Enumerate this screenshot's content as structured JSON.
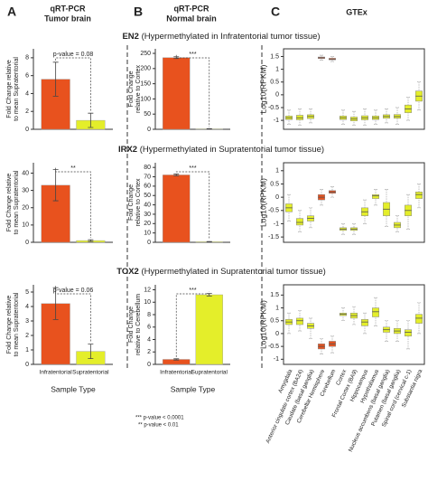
{
  "panels": [
    {
      "letter": "A",
      "title": [
        "qRT-PCR",
        "Tumor brain"
      ]
    },
    {
      "letter": "B",
      "title": [
        "qRT-PCR",
        "Normal brain"
      ]
    },
    {
      "letter": "C",
      "title": [
        "GTEx"
      ]
    }
  ],
  "rows": [
    {
      "gene": "EN2",
      "note": "(Hypermethylated in Infratentorial tumor tissue)"
    },
    {
      "gene": "IRX2",
      "note": "(Hypermethylated in Supratentorial tumor tissue)"
    },
    {
      "gene": "TOX2",
      "note": "(Hypermethylated in Supratentorial tumor tissue)"
    }
  ],
  "footnotes": [
    "*** p-value < 0.0001",
    "** p-value < 0.01"
  ],
  "chart_data": [
    {
      "type": "bar",
      "ylabel": [
        "Fold Change relative",
        "to mean Supratentorial"
      ],
      "values": [
        5.6,
        1
      ],
      "errors": [
        1.9,
        0.8
      ],
      "colors": [
        "#e8521e",
        "#e4ee2a"
      ],
      "ylim": [
        0,
        9
      ],
      "yticks": [
        0,
        2,
        4,
        6,
        8
      ],
      "annotation": "p-value = 0.08"
    },
    {
      "type": "bar",
      "ylabel": [
        "Fold Change",
        "relative to Cortex"
      ],
      "values": [
        236,
        1.5
      ],
      "errors": [
        3,
        0.5
      ],
      "colors": [
        "#e8521e",
        "#e4ee2a"
      ],
      "ylim": [
        0,
        265
      ],
      "yticks": [
        0,
        50,
        100,
        150,
        200,
        250
      ],
      "annotation": "***"
    },
    {
      "type": "box",
      "ylabel": "Log10(RPKM)",
      "ylim": [
        -1.35,
        1.8
      ],
      "yticks": [
        -1,
        -0.5,
        0,
        0.5,
        1,
        1.5
      ],
      "colors": [
        "#e4ee2a",
        "#e4ee2a",
        "#e4ee2a",
        "#e8521e",
        "#e8521e",
        "#e4ee2a",
        "#e4ee2a",
        "#e4ee2a",
        "#e4ee2a",
        "#e4ee2a",
        "#e4ee2a",
        "#e4ee2a",
        "#e4ee2a"
      ],
      "median": [
        -0.9,
        -0.9,
        -0.85,
        1.45,
        1.4,
        -0.9,
        -0.95,
        -0.9,
        -0.9,
        -0.85,
        -0.85,
        -0.55,
        -0.05
      ],
      "q1": [
        -0.97,
        -0.98,
        -0.93,
        1.42,
        1.37,
        -0.97,
        -1.02,
        -0.98,
        -0.97,
        -0.92,
        -0.92,
        -0.7,
        -0.25
      ],
      "q3": [
        -0.83,
        -0.8,
        -0.78,
        1.48,
        1.43,
        -0.83,
        -0.87,
        -0.82,
        -0.83,
        -0.78,
        -0.77,
        -0.4,
        0.15
      ],
      "min": [
        -1.15,
        -1.2,
        -1.1,
        1.35,
        1.3,
        -1.15,
        -1.2,
        -1.2,
        -1.15,
        -1.1,
        -1.15,
        -1.0,
        -0.6
      ],
      "max": [
        -0.6,
        -0.55,
        -0.55,
        1.55,
        1.5,
        -0.6,
        -0.65,
        -0.55,
        -0.6,
        -0.55,
        -0.5,
        -0.1,
        0.5
      ]
    },
    {
      "type": "bar",
      "ylabel": [
        "Fold Change relative",
        "to mean Supratentorial"
      ],
      "values": [
        33,
        1
      ],
      "errors": [
        9,
        0.5
      ],
      "colors": [
        "#e8521e",
        "#e4ee2a"
      ],
      "ylim": [
        0,
        46
      ],
      "yticks": [
        0,
        10,
        20,
        30,
        40
      ],
      "annotation": "**"
    },
    {
      "type": "bar",
      "ylabel": [
        "Fold Change",
        "relative to Cortex"
      ],
      "values": [
        72,
        0.6
      ],
      "errors": [
        1,
        0.2
      ],
      "colors": [
        "#e8521e",
        "#e4ee2a"
      ],
      "ylim": [
        0,
        85
      ],
      "yticks": [
        0,
        10,
        20,
        30,
        40,
        50,
        60,
        70,
        80
      ],
      "annotation": "***"
    },
    {
      "type": "box",
      "ylabel": "Log10(RPKM)",
      "ylim": [
        -1.7,
        1.3
      ],
      "yticks": [
        -1.5,
        -1,
        -0.5,
        0,
        0.5,
        1
      ],
      "colors": [
        "#e4ee2a",
        "#e4ee2a",
        "#e4ee2a",
        "#e8521e",
        "#e8521e",
        "#e4ee2a",
        "#e4ee2a",
        "#e4ee2a",
        "#e4ee2a",
        "#e4ee2a",
        "#e4ee2a",
        "#e4ee2a",
        "#e4ee2a"
      ],
      "median": [
        -0.4,
        -0.95,
        -0.8,
        0,
        0.2,
        -1.2,
        -1.2,
        -0.55,
        0.05,
        -0.45,
        -1.05,
        -0.5,
        0.1
      ],
      "q1": [
        -0.55,
        -1.05,
        -0.9,
        -0.1,
        0.15,
        -1.25,
        -1.25,
        -0.7,
        -0.05,
        -0.7,
        -1.15,
        -0.7,
        -0.05
      ],
      "q3": [
        -0.25,
        -0.8,
        -0.7,
        0.1,
        0.25,
        -1.15,
        -1.15,
        -0.4,
        0.1,
        -0.2,
        -0.95,
        -0.3,
        0.2
      ],
      "min": [
        -0.9,
        -1.3,
        -1.15,
        -0.3,
        0,
        -1.4,
        -1.4,
        -1.0,
        -0.3,
        -1.1,
        -1.3,
        -1.2,
        -0.4
      ],
      "max": [
        0.1,
        -0.5,
        -0.4,
        0.3,
        0.4,
        -1.0,
        -1.0,
        -0.1,
        0.3,
        0.3,
        -0.7,
        0.1,
        0.5
      ]
    },
    {
      "type": "bar",
      "ylabel": [
        "Fold Change relative",
        "to mean Supratentorial"
      ],
      "categories": [
        "Infratentorial",
        "Supratentorial"
      ],
      "xlabel": "Sample Type",
      "values": [
        4.2,
        0.9
      ],
      "errors": [
        1.1,
        0.5
      ],
      "colors": [
        "#e8521e",
        "#e4ee2a"
      ],
      "ylim": [
        0,
        5.5
      ],
      "yticks": [
        0,
        1,
        2,
        3,
        4,
        5
      ],
      "annotation": "p-value = 0.06"
    },
    {
      "type": "bar",
      "ylabel": [
        "Fold Change",
        "relative to Cerebellum"
      ],
      "categories": [
        "Infratentorial",
        "Supratentorial"
      ],
      "xlabel": "Sample Type",
      "values": [
        0.8,
        11.2
      ],
      "errors": [
        0.1,
        0.2
      ],
      "colors": [
        "#e8521e",
        "#e4ee2a"
      ],
      "ylim": [
        0,
        12.8
      ],
      "yticks": [
        0,
        2,
        4,
        6,
        8,
        10,
        12
      ],
      "annotation": "***"
    },
    {
      "type": "box",
      "ylabel": "Log10(RPKM)",
      "ylim": [
        -1.2,
        1.9
      ],
      "yticks": [
        -1,
        -0.5,
        0,
        0.5,
        1,
        1.5
      ],
      "categories": [
        "Amygdala",
        "Anterior cingulate cortex (BA24)",
        "Caudate (basal ganglia)",
        "Cerebellar Hemisphere",
        "Cerebellum",
        "Cortex",
        "Frontal Cortex (BA9)",
        "Hippocampus",
        "Hypothalamus",
        "Nucleus accumbens (basal ganglia)",
        "Putamen (basal ganglia)",
        "Spinal cord (cervical c-1)",
        "Substantia nigra"
      ],
      "colors": [
        "#e4ee2a",
        "#e4ee2a",
        "#e4ee2a",
        "#e8521e",
        "#e8521e",
        "#e4ee2a",
        "#e4ee2a",
        "#e4ee2a",
        "#e4ee2a",
        "#e4ee2a",
        "#e4ee2a",
        "#e4ee2a",
        "#e4ee2a"
      ],
      "median": [
        0.45,
        0.5,
        0.3,
        -0.5,
        -0.4,
        0.75,
        0.7,
        0.45,
        0.85,
        0.15,
        0.1,
        0.05,
        0.6
      ],
      "q1": [
        0.35,
        0.35,
        0.2,
        -0.6,
        -0.5,
        0.7,
        0.6,
        0.3,
        0.65,
        0.05,
        0,
        -0.1,
        0.4
      ],
      "q3": [
        0.55,
        0.6,
        0.4,
        -0.4,
        -0.3,
        0.8,
        0.8,
        0.55,
        1.0,
        0.25,
        0.2,
        0.15,
        0.75
      ],
      "min": [
        0,
        0.1,
        -0.2,
        -0.8,
        -0.75,
        0.5,
        0.35,
        0,
        0.3,
        -0.3,
        -0.3,
        -0.6,
        0
      ],
      "max": [
        0.8,
        0.9,
        0.6,
        -0.2,
        -0.1,
        1.0,
        1.05,
        0.8,
        1.4,
        0.5,
        0.5,
        0.5,
        1.2
      ]
    }
  ]
}
